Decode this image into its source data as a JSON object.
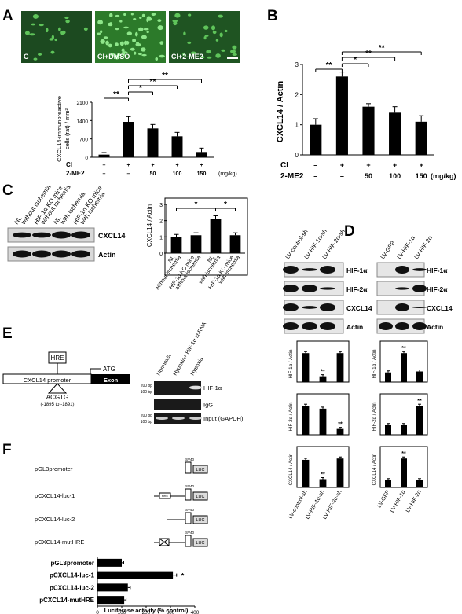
{
  "panels": {
    "A": {
      "letter": "A",
      "images": [
        "C",
        "CI+DMSO",
        "CI+2-ME2"
      ],
      "image_colors": [
        "#1c4a20",
        "#2c7a2a",
        "#1f5422"
      ],
      "chart_data": {
        "type": "bar",
        "ylabel": "CXCL14-immunoreactive\ncells (rat) / mm²",
        "yticks": [
          "0",
          "700",
          "1400",
          "2100"
        ],
        "ylim": [
          0,
          2100
        ],
        "categories": [
          "C",
          "CI",
          "CI+50",
          "CI+100",
          "CI+150"
        ],
        "values": [
          100,
          1350,
          1100,
          800,
          200
        ],
        "errors": [
          80,
          200,
          150,
          150,
          150
        ],
        "rows": [
          {
            "label": "CI",
            "vals": [
              "–",
              "+",
              "+",
              "+",
              "+"
            ]
          },
          {
            "label": "2-ME2",
            "vals": [
              "–",
              "–",
              "50",
              "100",
              "150"
            ]
          }
        ],
        "unit": "(mg/kg)",
        "sig": [
          "**",
          "*",
          "**",
          "**"
        ]
      }
    },
    "B": {
      "letter": "B",
      "chart_data": {
        "type": "bar",
        "ylabel": "CXCL14 / Actin",
        "yticks": [
          "0",
          "1",
          "2",
          "3"
        ],
        "ylim": [
          0,
          3
        ],
        "categories": [
          "C",
          "CI",
          "CI+50",
          "CI+100",
          "CI+150"
        ],
        "values": [
          1.0,
          2.6,
          1.6,
          1.4,
          1.1
        ],
        "errors": [
          0.2,
          0.15,
          0.1,
          0.2,
          0.2
        ],
        "rows": [
          {
            "label": "CI",
            "vals": [
              "–",
              "+",
              "+",
              "+",
              "+"
            ]
          },
          {
            "label": "2-ME2",
            "vals": [
              "–",
              "–",
              "50",
              "100",
              "150"
            ]
          }
        ],
        "unit": "(mg/kg)",
        "sig": [
          "**",
          "*",
          "**",
          "**"
        ]
      }
    },
    "C": {
      "letter": "C",
      "lanes": [
        "NL without ischemia",
        "HIF-1α KO mice without ischemia",
        "NL with ischemia",
        "HIF-1α KO mice with ischemia"
      ],
      "blots": [
        "CXCL14",
        "Actin"
      ],
      "chart_data": {
        "type": "bar",
        "ylabel": "CXCL14 / Actin",
        "yticks": [
          "0",
          "1",
          "2",
          "3"
        ],
        "ylim": [
          0,
          3
        ],
        "categories": [
          "NL without ischemia",
          "HIF-1α KO mice without ischemia",
          "NL with ischemia",
          "HIF-1α KO mice with ischemia"
        ],
        "values": [
          1.0,
          1.1,
          2.1,
          1.1
        ],
        "errors": [
          0.15,
          0.15,
          0.2,
          0.15
        ],
        "sig": [
          "*",
          "*"
        ]
      }
    },
    "D": {
      "letter": "D",
      "left_lanes": [
        "LV-control-sh",
        "LV-HIF-1α-sh",
        "LV-HIF-2α-sh"
      ],
      "right_lanes": [
        "LV-GFP",
        "LV-HIF-1α",
        "LV-HIF-2α"
      ],
      "blots": [
        "HIF-1α",
        "HIF-2α",
        "CXCL14",
        "Actin"
      ],
      "chart_data": [
        {
          "type": "bar",
          "ylabel": "HIF-1α / Actin",
          "categories": [
            "LV-control-sh",
            "LV-HIF-1α-sh",
            "LV-HIF-2α-sh"
          ],
          "values": [
            1.0,
            0.2,
            1.0
          ],
          "sig": [
            "",
            "**",
            ""
          ]
        },
        {
          "type": "bar",
          "ylabel": "HIF-2α / Actin",
          "categories": [
            "LV-control-sh",
            "LV-HIF-1α-sh",
            "LV-HIF-2α-sh"
          ],
          "values": [
            1.0,
            0.9,
            0.2
          ],
          "sig": [
            "",
            "",
            "**"
          ]
        },
        {
          "type": "bar",
          "ylabel": "CXCL14 / Actin",
          "categories": [
            "LV-control-sh",
            "LV-HIF-1α-sh",
            "LV-HIF-2α-sh"
          ],
          "values": [
            1.0,
            0.3,
            1.05
          ],
          "sig": [
            "",
            "**",
            ""
          ]
        },
        {
          "type": "bar",
          "ylabel": "HIF-1α / Actin",
          "categories": [
            "LV-GFP",
            "LV-HIF-1α",
            "LV-HIF-2α"
          ],
          "values": [
            1.0,
            3.0,
            1.1
          ],
          "sig": [
            "",
            "**",
            ""
          ]
        },
        {
          "type": "bar",
          "ylabel": "HIF-2α / Actin",
          "categories": [
            "LV-GFP",
            "LV-HIF-1α",
            "LV-HIF-2α"
          ],
          "values": [
            1.0,
            1.0,
            3.0
          ],
          "sig": [
            "",
            "",
            "**"
          ]
        },
        {
          "type": "bar",
          "ylabel": "CXCL14 / Actin",
          "categories": [
            "LV-GFP",
            "LV-HIF-1α",
            "LV-HIF-2α"
          ],
          "values": [
            1.0,
            4.0,
            1.0
          ],
          "sig": [
            "",
            "**",
            ""
          ]
        }
      ]
    },
    "E": {
      "letter": "E",
      "hre": "HRE",
      "atg": "ATG",
      "promoter": "CXCL14 promoter",
      "exon": "Exon",
      "seq": "ACGTG",
      "pos": "(-1895 to -1891)",
      "lanes": [
        "Normoxia",
        "Hypoxia+ HIF-1α shRNA",
        "Hypoxia"
      ],
      "gel_labels": [
        "HIF-1α",
        "IgG",
        "Input (GAPDH)"
      ],
      "bp": [
        "200 bp",
        "100 bp"
      ]
    },
    "F": {
      "letter": "F",
      "constructs": [
        "pGL3promoter",
        "pCXCL14-luc-1",
        "pCXCL14-luc-2",
        "pCXCL14-mutHRE"
      ],
      "sv40": "SV40",
      "luc": "LUC",
      "hre": "HRE",
      "chart_data": {
        "type": "bar",
        "orientation": "horizontal",
        "xlabel": "Luciferase activity (% control)",
        "xticks": [
          "0",
          "100",
          "200",
          "300",
          "400"
        ],
        "xlim": [
          0,
          400
        ],
        "categories": [
          "pGL3promoter",
          "pCXCL14-luc-1",
          "pCXCL14-luc-2",
          "pCXCL14-mutHRE"
        ],
        "values": [
          100,
          310,
          125,
          110
        ],
        "errors": [
          8,
          15,
          10,
          8
        ],
        "sig": [
          "",
          "*",
          "",
          ""
        ]
      }
    }
  }
}
